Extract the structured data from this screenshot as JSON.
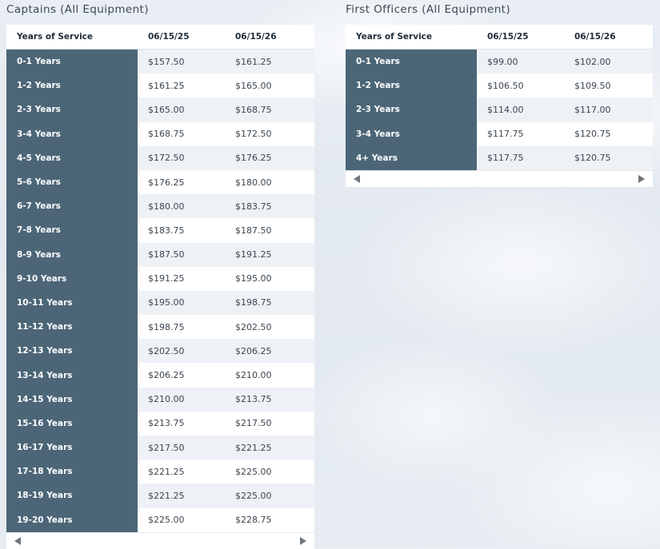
{
  "captains": {
    "title": "Captains (All Equipment)",
    "headers": [
      "Years of Service",
      "06/15/25",
      "06/15/26"
    ],
    "rows": [
      [
        "0-1 Years",
        "$157.50",
        "$161.25"
      ],
      [
        "1-2 Years",
        "$161.25",
        "$165.00"
      ],
      [
        "2-3 Years",
        "$165.00",
        "$168.75"
      ],
      [
        "3-4 Years",
        "$168.75",
        "$172.50"
      ],
      [
        "4-5 Years",
        "$172.50",
        "$176.25"
      ],
      [
        "5-6 Years",
        "$176.25",
        "$180.00"
      ],
      [
        "6-7 Years",
        "$180.00",
        "$183.75"
      ],
      [
        "7-8 Years",
        "$183.75",
        "$187.50"
      ],
      [
        "8-9 Years",
        "$187.50",
        "$191.25"
      ],
      [
        "9-10 Years",
        "$191.25",
        "$195.00"
      ],
      [
        "10-11 Years",
        "$195.00",
        "$198.75"
      ],
      [
        "11-12 Years",
        "$198.75",
        "$202.50"
      ],
      [
        "12-13 Years",
        "$202.50",
        "$206.25"
      ],
      [
        "13-14 Years",
        "$206.25",
        "$210.00"
      ],
      [
        "14-15 Years",
        "$210.00",
        "$213.75"
      ],
      [
        "15-16 Years",
        "$213.75",
        "$217.50"
      ],
      [
        "16-17 Years",
        "$217.50",
        "$221.25"
      ],
      [
        "17-18 Years",
        "$221.25",
        "$225.00"
      ],
      [
        "18-19 Years",
        "$221.25",
        "$225.00"
      ],
      [
        "19-20 Years",
        "$225.00",
        "$228.75"
      ]
    ]
  },
  "first_officers": {
    "title": "First Officers (All Equipment)",
    "headers": [
      "Years of Service",
      "06/15/25",
      "06/15/26"
    ],
    "rows": [
      [
        "0-1 Years",
        "$99.00",
        "$102.00"
      ],
      [
        "1-2 Years",
        "$106.50",
        "$109.50"
      ],
      [
        "2-3 Years",
        "$114.00",
        "$117.00"
      ],
      [
        "3-4 Years",
        "$117.75",
        "$120.75"
      ],
      [
        "4+ Years",
        "$117.75",
        "$120.75"
      ]
    ]
  },
  "colors": {
    "row_header_bg": "#4c6678",
    "stripe_bg": "#eef1f6",
    "header_text": "#1f2d3a"
  },
  "icons": {
    "scroll_left": "scroll-left-arrow-icon",
    "scroll_right": "scroll-right-arrow-icon"
  }
}
